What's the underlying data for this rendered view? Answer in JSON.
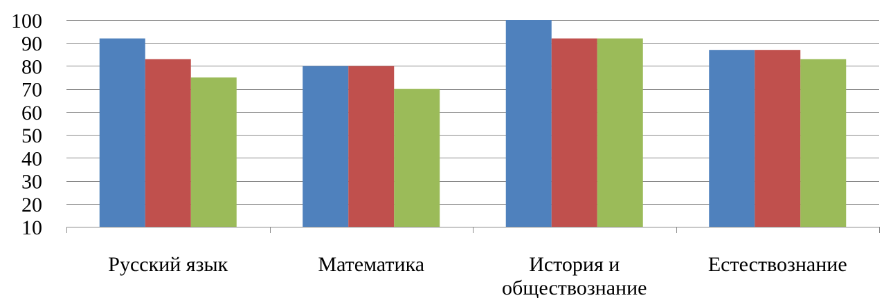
{
  "chart_data": {
    "type": "bar",
    "title": "",
    "xlabel": "",
    "ylabel": "",
    "ylim": [
      10,
      100
    ],
    "yticks": [
      10,
      20,
      30,
      40,
      50,
      60,
      70,
      80,
      90,
      100
    ],
    "grid": true,
    "legend": "none",
    "categories": [
      [
        "Русский язык"
      ],
      [
        "Математика"
      ],
      [
        "История и",
        "обществознание"
      ],
      [
        "Естествознание"
      ]
    ],
    "series": [
      {
        "color": "#4F81BD",
        "values": [
          92,
          80,
          100,
          87
        ]
      },
      {
        "color": "#C0504D",
        "values": [
          83,
          80,
          92,
          87
        ]
      },
      {
        "color": "#9BBB59",
        "values": [
          75,
          70,
          92,
          83
        ]
      }
    ]
  }
}
